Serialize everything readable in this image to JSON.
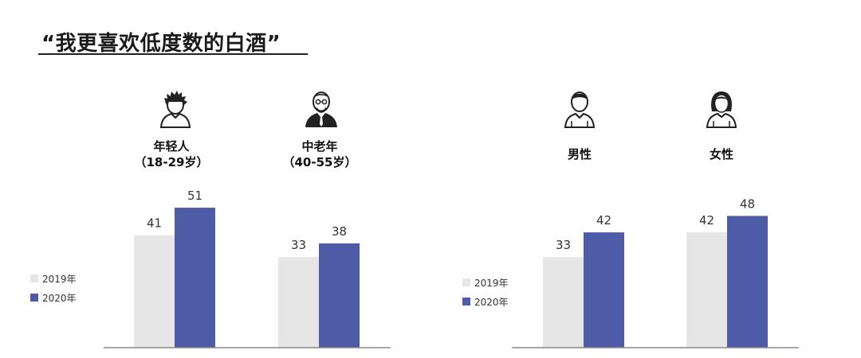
{
  "title": "“我更喜欢低度数的白酒”",
  "colors": {
    "series_2019": "#e6e6e6",
    "series_2020": "#4e5ba6",
    "baseline": "#888888"
  },
  "legend": [
    "2019年",
    "2020年"
  ],
  "chart_data": [
    {
      "type": "bar",
      "title": "",
      "categories": [
        {
          "label_line1": "年轻人",
          "label_line2": "（18-29岁）",
          "icon": "young-man-icon"
        },
        {
          "label_line1": "中老年",
          "label_line2": "（40-55岁）",
          "icon": "older-man-icon"
        }
      ],
      "series": [
        {
          "name": "2019年",
          "values": [
            41,
            33
          ]
        },
        {
          "name": "2020年",
          "values": [
            51,
            38
          ]
        }
      ],
      "ylim": [
        0,
        70
      ],
      "grid": false,
      "legend_position": "left",
      "data_labels": true
    },
    {
      "type": "bar",
      "title": "",
      "categories": [
        {
          "label_line1": "男性",
          "label_line2": "",
          "icon": "male-icon"
        },
        {
          "label_line1": "女性",
          "label_line2": "",
          "icon": "female-icon"
        }
      ],
      "series": [
        {
          "name": "2019年",
          "values": [
            33,
            42
          ]
        },
        {
          "name": "2020年",
          "values": [
            42,
            48
          ]
        }
      ],
      "ylim": [
        0,
        70
      ],
      "grid": false,
      "legend_position": "left",
      "data_labels": true
    }
  ]
}
